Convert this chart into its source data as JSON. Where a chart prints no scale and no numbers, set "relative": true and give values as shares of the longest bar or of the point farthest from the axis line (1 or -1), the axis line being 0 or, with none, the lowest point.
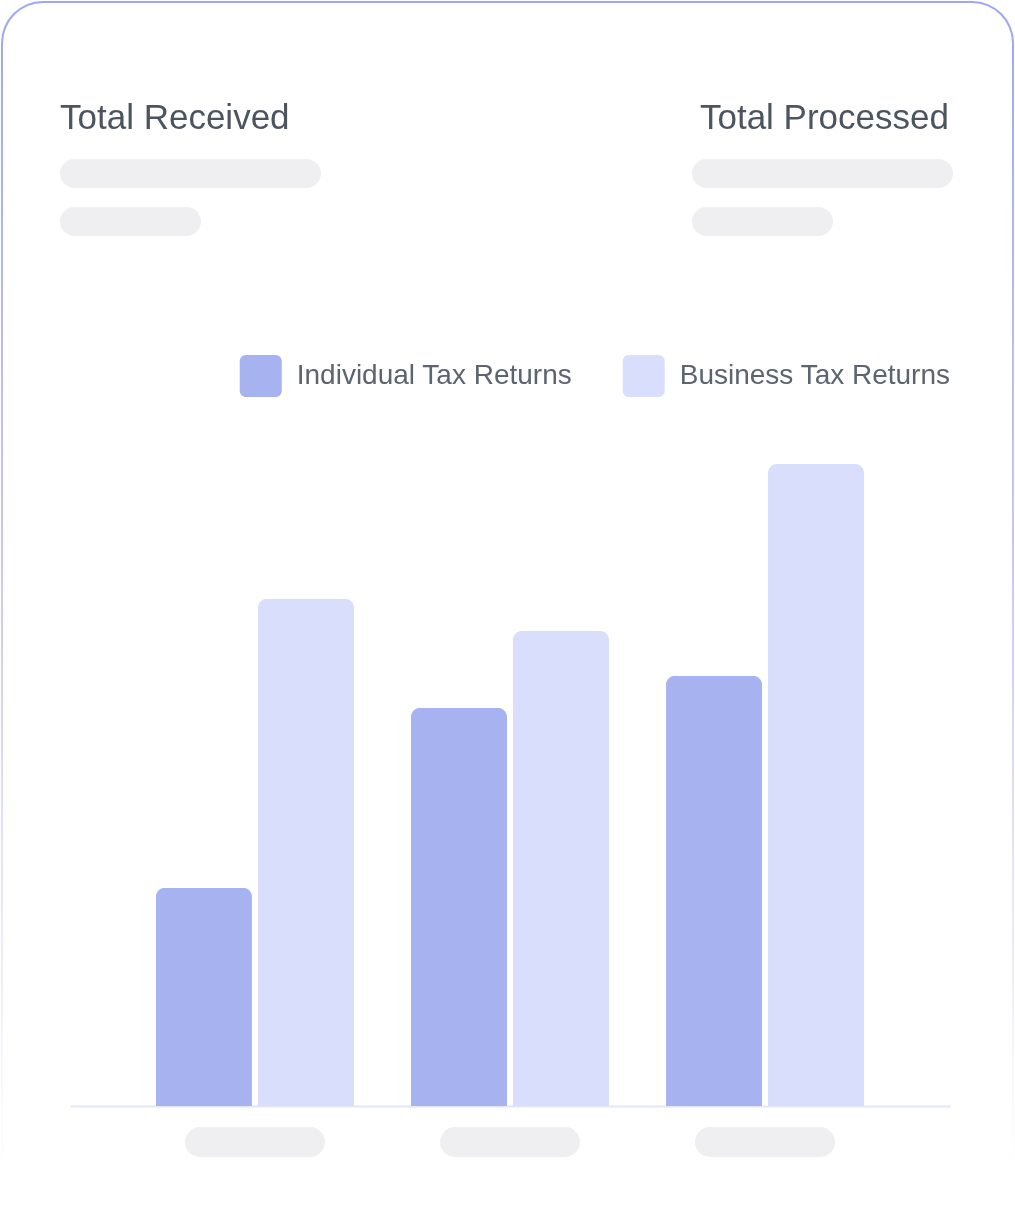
{
  "chart_data": {
    "type": "bar",
    "relative": true,
    "categories": [
      null,
      null,
      null
    ],
    "series": [
      {
        "name": "Individual Tax Returns",
        "color": "#a7b2f0",
        "values": [
          0.34,
          0.62,
          0.67
        ]
      },
      {
        "name": "Business Tax Returns",
        "color": "#d9defd",
        "values": [
          0.79,
          0.74,
          1
        ]
      }
    ],
    "legend": "top right",
    "annotations": [
      "Total Received",
      "Total Processed"
    ]
  }
}
